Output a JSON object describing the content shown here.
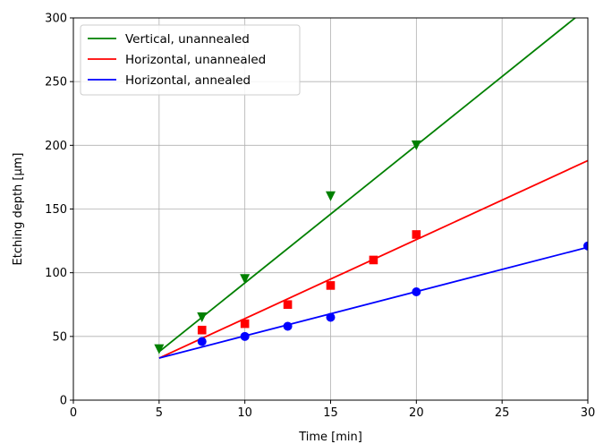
{
  "chart_data": {
    "type": "scatter",
    "title": "",
    "xlabel": "Time [min]",
    "ylabel": "Etching depth [μm]",
    "xlim": [
      0,
      30
    ],
    "ylim": [
      0,
      300
    ],
    "xticks": [
      0,
      5,
      10,
      15,
      20,
      25,
      30
    ],
    "yticks": [
      0,
      50,
      100,
      150,
      200,
      250,
      300
    ],
    "grid": true,
    "legend_position": "top-left",
    "series": [
      {
        "name": "Vertical, unannealed",
        "color": "#008000",
        "marker": "triangle-down",
        "points": [
          [
            5,
            40
          ],
          [
            7.5,
            65
          ],
          [
            10,
            95
          ],
          [
            15,
            160
          ],
          [
            20,
            200
          ]
        ],
        "fit_line": [
          [
            5,
            38
          ],
          [
            30,
            308
          ]
        ]
      },
      {
        "name": "Horizontal, unannealed",
        "color": "#ff0000",
        "marker": "square",
        "points": [
          [
            7.5,
            55
          ],
          [
            10,
            60
          ],
          [
            12.5,
            75
          ],
          [
            15,
            90
          ],
          [
            17.5,
            110
          ],
          [
            20,
            130
          ]
        ],
        "fit_line": [
          [
            5,
            33
          ],
          [
            30,
            188
          ]
        ]
      },
      {
        "name": "Horizontal, annealed",
        "color": "#0000ff",
        "marker": "circle",
        "points": [
          [
            7.5,
            46
          ],
          [
            10,
            50
          ],
          [
            12.5,
            58
          ],
          [
            15,
            65
          ],
          [
            20,
            85
          ],
          [
            30,
            121
          ]
        ],
        "fit_line": [
          [
            5,
            33
          ],
          [
            30,
            120
          ]
        ]
      }
    ]
  }
}
